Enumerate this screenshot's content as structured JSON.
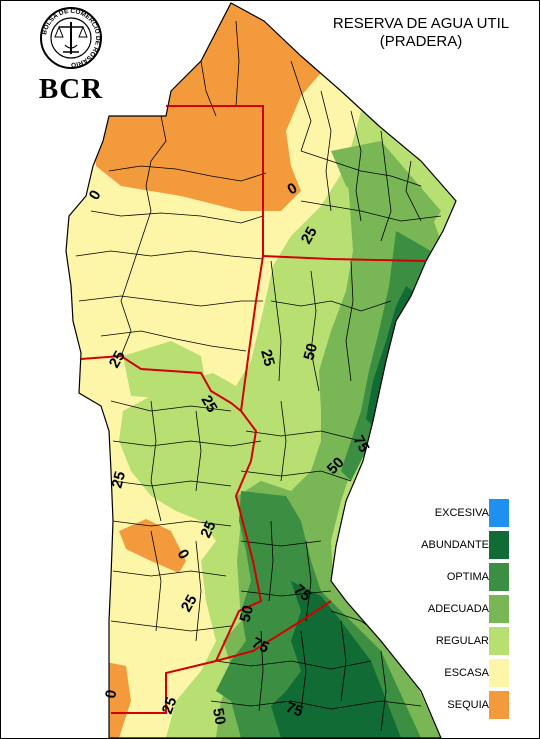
{
  "header": {
    "title_line1": "RESERVA DE AGUA UTIL",
    "title_line2": "(PRADERA)"
  },
  "logo": {
    "seal_text": "BOLSA DE COMERCIO DE ROSARIO",
    "wordmark": "BCR"
  },
  "contour_labels": [
    "0",
    "25",
    "25",
    "25",
    "25",
    "25",
    "50",
    "75",
    "50",
    "25",
    "25",
    "50",
    "75",
    "75",
    "75",
    "0",
    "25",
    "50",
    "75"
  ],
  "legend": {
    "items": [
      {
        "label": "EXCESIVA",
        "color": "#1f8ff0"
      },
      {
        "label": "ABUNDANTE",
        "color": "#106b35"
      },
      {
        "label": "OPTIMA",
        "color": "#3c8f42"
      },
      {
        "label": "ADECUADA",
        "color": "#79b655"
      },
      {
        "label": "REGULAR",
        "color": "#b8df72"
      },
      {
        "label": "ESCASA",
        "color": "#fdf6a8"
      },
      {
        "label": "SEQUIA",
        "color": "#f39b3c"
      }
    ]
  },
  "colors": {
    "background": "#ffffff",
    "province_border": "#d20000",
    "district_lines": "#000000"
  }
}
